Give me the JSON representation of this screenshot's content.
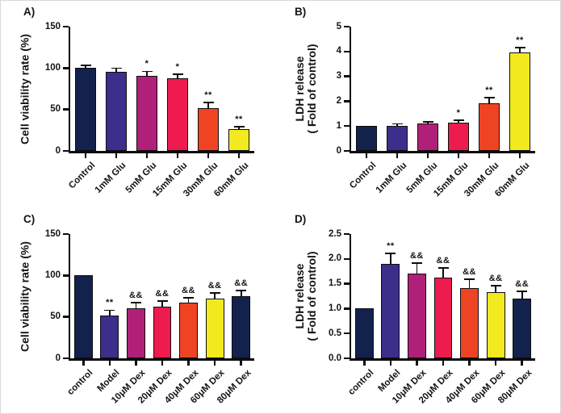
{
  "figure": {
    "background": "#ffffff",
    "axis_color": "#0c0c0c",
    "description_colors": {
      "navy": "#13224d",
      "indigo": "#3c2f8b",
      "magenta": "#b12078",
      "crimson": "#ee1c4e",
      "orange": "#ef4423",
      "yellow": "#f2e91e"
    }
  },
  "chart_data": [
    {
      "type": "bar",
      "panel_label": "A)",
      "title": "",
      "xlabel": "",
      "ylabel_lines": [
        "Cell viability rate (%)"
      ],
      "categories": [
        "Control",
        "1mM Glu",
        "5mM Glu",
        "15mM Glu",
        "30mM Glu",
        "60mM Glu"
      ],
      "values": [
        100,
        95,
        91,
        88,
        52,
        26
      ],
      "errors": [
        2.5,
        4,
        4,
        4,
        5.5,
        2.5
      ],
      "annotations": [
        "",
        "",
        "*",
        "*",
        "**",
        "**"
      ],
      "bar_colors": [
        "#13224d",
        "#3c2f8b",
        "#b12078",
        "#ee1c4e",
        "#ef4423",
        "#f2e91e"
      ],
      "ylim": [
        0,
        150
      ],
      "yticks": [
        0,
        50,
        100,
        150
      ],
      "ytick_labels": [
        "0",
        "50",
        "100",
        "150"
      ],
      "grid": false,
      "legend": "none"
    },
    {
      "type": "bar",
      "panel_label": "B)",
      "title": "",
      "xlabel": "",
      "ylabel_lines": [
        "LDH release",
        "( Fold of control)"
      ],
      "categories": [
        "Control",
        "1mM Glu",
        "5mM Glu",
        "15mM Glu",
        "30mM Glu",
        "60mM Glu"
      ],
      "values": [
        1.0,
        1.02,
        1.1,
        1.13,
        1.93,
        3.95
      ],
      "errors": [
        0,
        0.04,
        0.04,
        0.08,
        0.18,
        0.18
      ],
      "annotations": [
        "",
        "",
        "",
        "*",
        "**",
        "**"
      ],
      "bar_colors": [
        "#13224d",
        "#3c2f8b",
        "#b12078",
        "#ee1c4e",
        "#ef4423",
        "#f2e91e"
      ],
      "ylim": [
        0,
        5
      ],
      "yticks": [
        0,
        1,
        2,
        3,
        4,
        5
      ],
      "ytick_labels": [
        "0",
        "1",
        "2",
        "3",
        "4",
        "5"
      ],
      "grid": false,
      "legend": "none"
    },
    {
      "type": "bar",
      "panel_label": "C)",
      "title": "",
      "xlabel": "",
      "ylabel_lines": [
        "Cell viability rate (%)"
      ],
      "categories": [
        "control",
        "Model",
        "10μM Dex",
        "20μM Dex",
        "40μM Dex",
        "60μM Dex",
        "80μM Dex"
      ],
      "values": [
        100,
        52,
        60,
        62,
        67,
        72,
        75
      ],
      "errors": [
        0,
        5,
        6,
        6,
        5,
        6,
        6
      ],
      "annotations": [
        "",
        "**",
        "&&",
        "&&",
        "&&",
        "&&",
        "&&"
      ],
      "bar_colors": [
        "#13224d",
        "#3c2f8b",
        "#b12078",
        "#ee1c4e",
        "#ef4423",
        "#f2e91e",
        "#13224d"
      ],
      "ylim": [
        0,
        150
      ],
      "yticks": [
        0,
        50,
        100,
        150
      ],
      "ytick_labels": [
        "0",
        "50",
        "100",
        "150"
      ],
      "grid": false,
      "legend": "none"
    },
    {
      "type": "bar",
      "panel_label": "D)",
      "title": "",
      "xlabel": "",
      "ylabel_lines": [
        "LDH release",
        "( Fold of control)"
      ],
      "categories": [
        "control",
        "Model",
        "10μM Dex",
        "20μM Dex",
        "40μM Dex",
        "60μM Dex",
        "80μM Dex"
      ],
      "values": [
        1.0,
        1.9,
        1.7,
        1.62,
        1.42,
        1.33,
        1.2
      ],
      "errors": [
        0,
        0.19,
        0.2,
        0.18,
        0.15,
        0.12,
        0.13
      ],
      "annotations": [
        "",
        "**",
        "&&",
        "&&",
        "&&",
        "&&",
        "&&"
      ],
      "bar_colors": [
        "#13224d",
        "#3c2f8b",
        "#b12078",
        "#ee1c4e",
        "#ef4423",
        "#f2e91e",
        "#13224d"
      ],
      "ylim": [
        0,
        2.5
      ],
      "yticks": [
        0,
        0.5,
        1,
        1.5,
        2,
        2.5
      ],
      "ytick_labels": [
        "0.0",
        "0.5",
        "1.0",
        "1.5",
        "2.0",
        "2.5"
      ],
      "grid": false,
      "legend": "none"
    }
  ]
}
